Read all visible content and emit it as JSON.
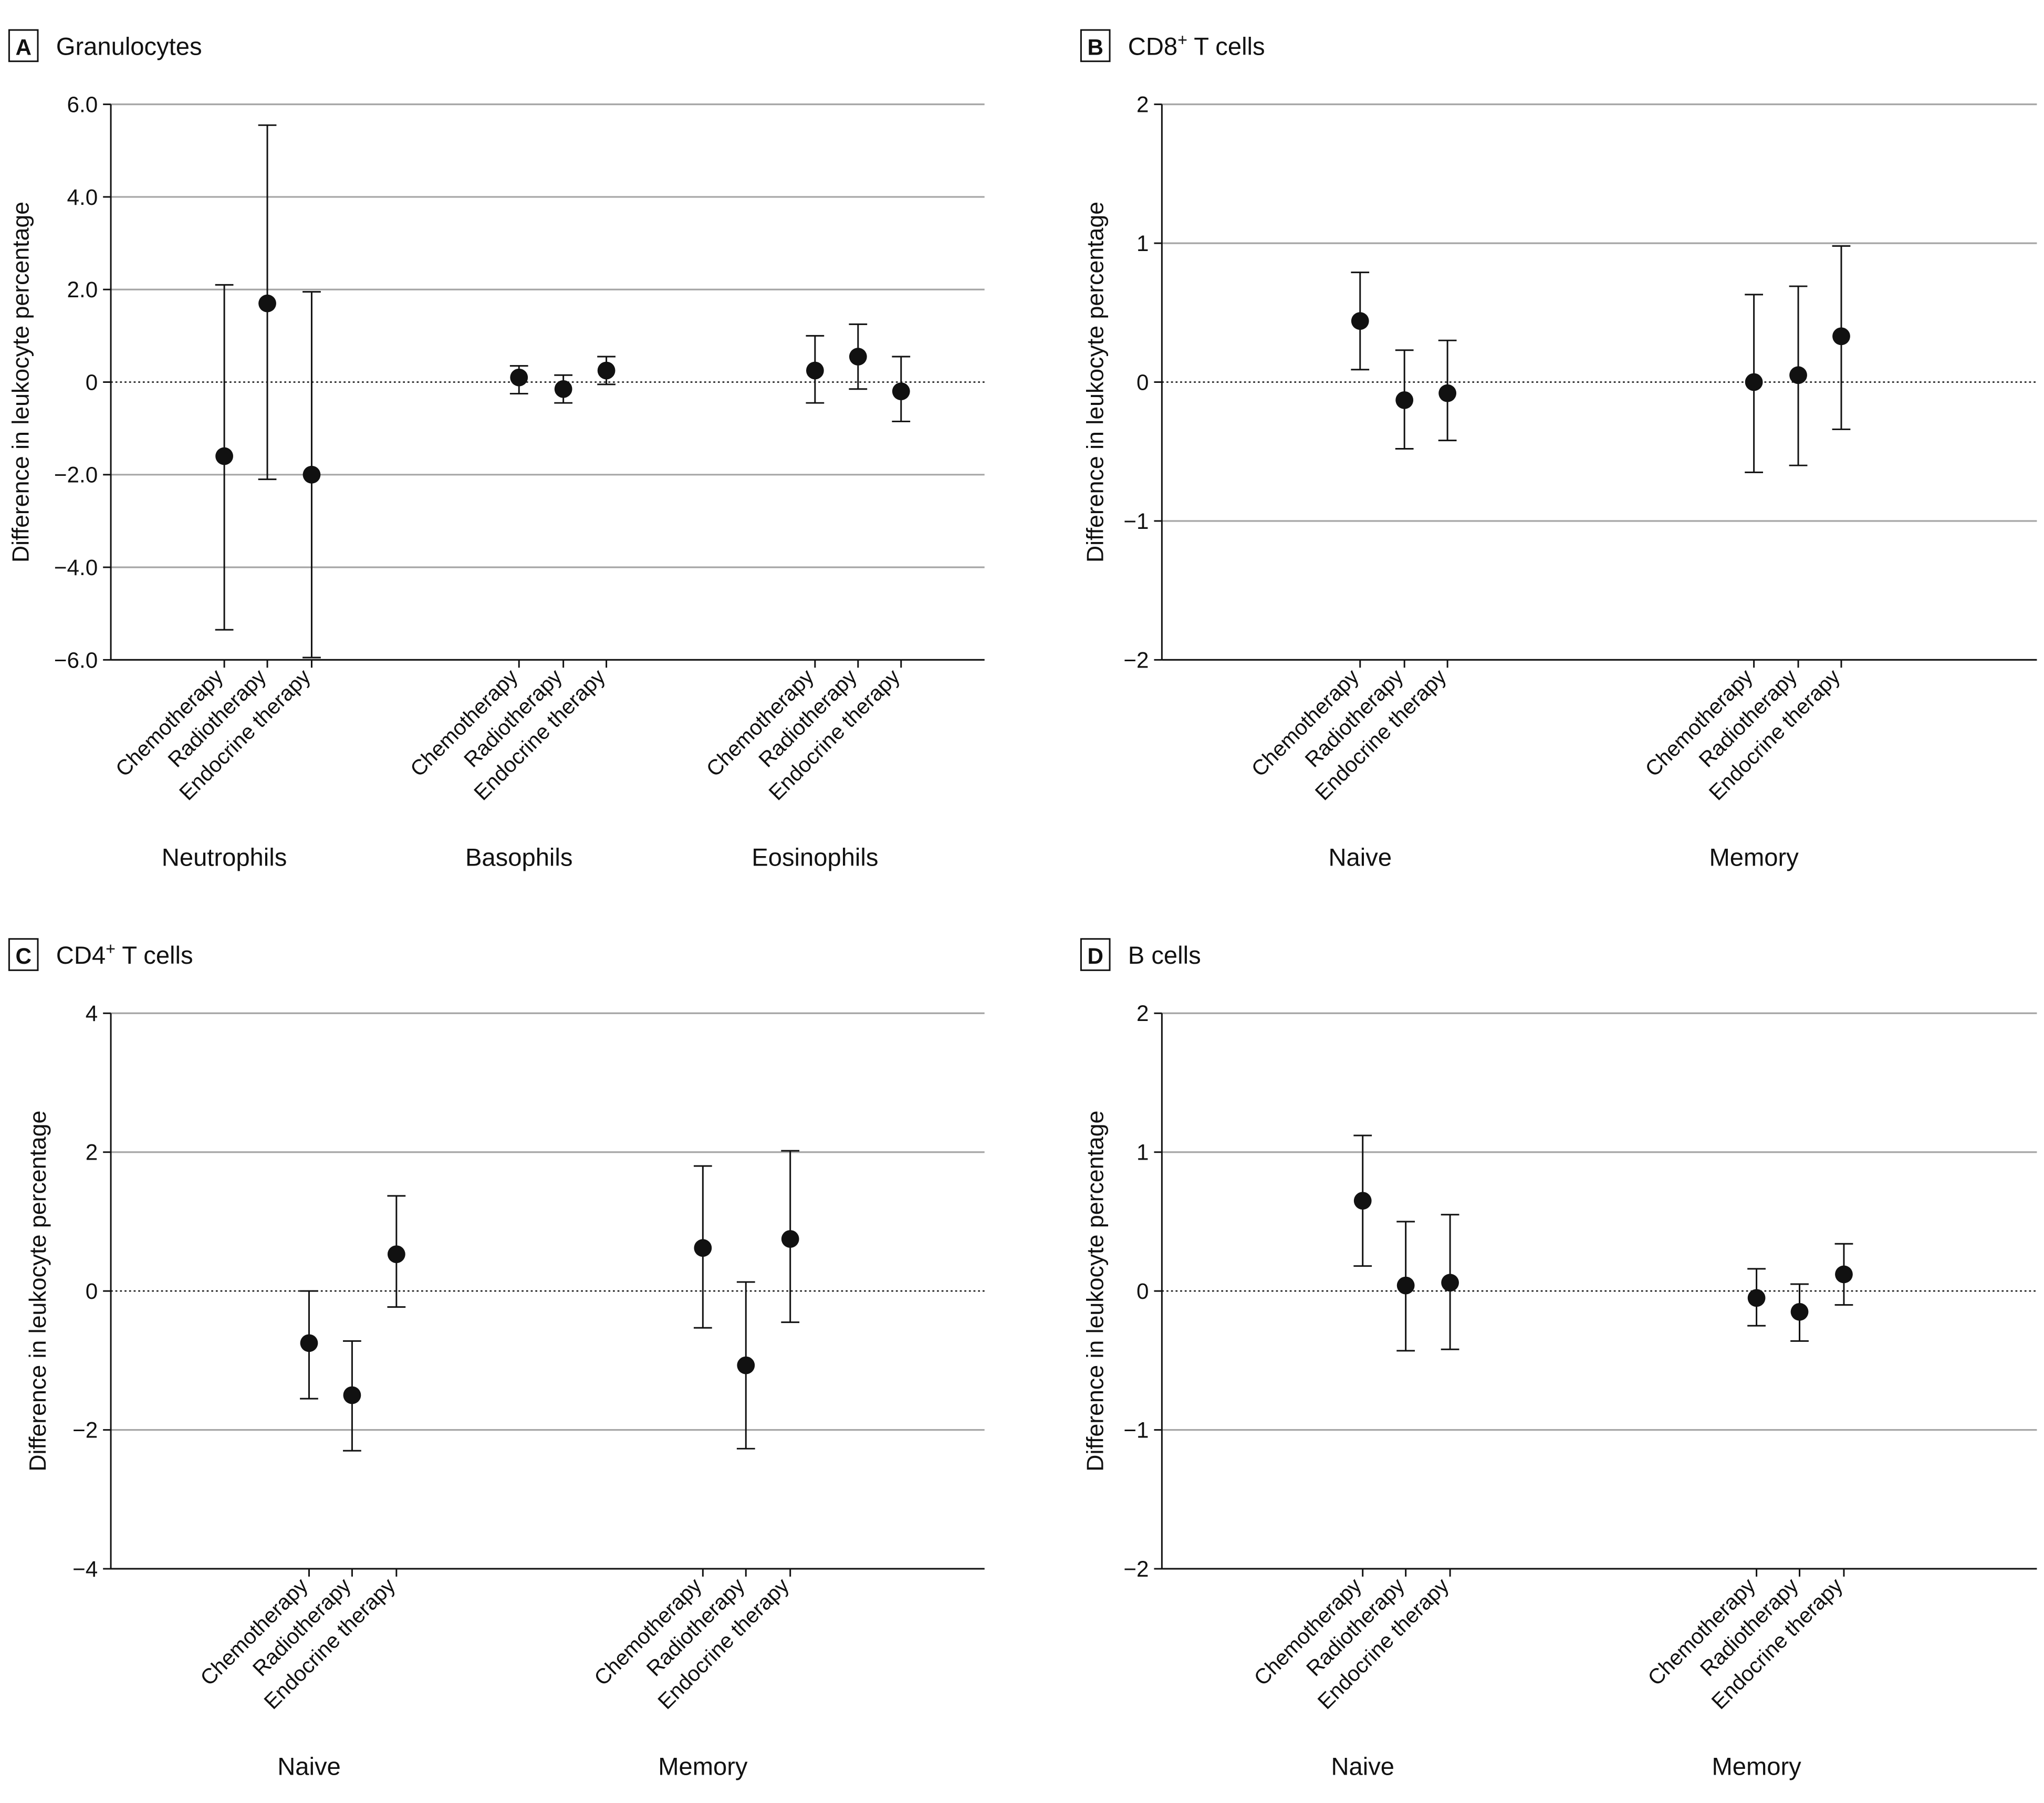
{
  "figure": {
    "colors": {
      "grid": "#a6a6a6",
      "axis": "#111111",
      "marker": "#111111",
      "zero_line": "#111111"
    },
    "treatments": [
      "Chemotherapy",
      "Radiotherapy",
      "Endocrine therapy"
    ]
  },
  "chart_data": [
    {
      "panel_letter": "A",
      "title": "Granulocytes",
      "title_sup": "",
      "type": "scatter",
      "subtype": "point estimate with 95% CI error bars",
      "ylabel": "Difference in leukocyte percentage",
      "ylim": [
        -6,
        6
      ],
      "yticks": [
        -6,
        -4,
        -2,
        0,
        2,
        4,
        6
      ],
      "ytick_labels": [
        "−6.0",
        "−4.0",
        "−2.0",
        "0",
        "2.0",
        "4.0",
        "6.0"
      ],
      "reference_line": 0,
      "groups": [
        {
          "name": "Neutrophils",
          "points": [
            {
              "treatment": "Chemotherapy",
              "estimate": -1.6,
              "lower": -5.35,
              "upper": 2.1
            },
            {
              "treatment": "Radiotherapy",
              "estimate": 1.7,
              "lower": -2.1,
              "upper": 5.55
            },
            {
              "treatment": "Endocrine therapy",
              "estimate": -2.0,
              "lower": -5.95,
              "upper": 1.95
            }
          ]
        },
        {
          "name": "Basophils",
          "points": [
            {
              "treatment": "Chemotherapy",
              "estimate": 0.1,
              "lower": -0.25,
              "upper": 0.35
            },
            {
              "treatment": "Radiotherapy",
              "estimate": -0.15,
              "lower": -0.45,
              "upper": 0.15
            },
            {
              "treatment": "Endocrine therapy",
              "estimate": 0.25,
              "lower": -0.05,
              "upper": 0.55
            }
          ]
        },
        {
          "name": "Eosinophils",
          "points": [
            {
              "treatment": "Chemotherapy",
              "estimate": 0.25,
              "lower": -0.45,
              "upper": 1.0
            },
            {
              "treatment": "Radiotherapy",
              "estimate": 0.55,
              "lower": -0.15,
              "upper": 1.25
            },
            {
              "treatment": "Endocrine therapy",
              "estimate": -0.2,
              "lower": -0.85,
              "upper": 0.55
            }
          ]
        }
      ]
    },
    {
      "panel_letter": "B",
      "title": " T cells",
      "title_prefix": "CD8",
      "title_sup": "+",
      "type": "scatter",
      "subtype": "point estimate with 95% CI error bars",
      "ylabel": "Difference in leukocyte percentage",
      "ylim": [
        -2,
        2
      ],
      "yticks": [
        -2,
        -1,
        0,
        1,
        2
      ],
      "ytick_labels": [
        "−2",
        "−1",
        "0",
        "1",
        "2"
      ],
      "reference_line": 0,
      "groups": [
        {
          "name": "Naive",
          "points": [
            {
              "treatment": "Chemotherapy",
              "estimate": 0.44,
              "lower": 0.09,
              "upper": 0.79
            },
            {
              "treatment": "Radiotherapy",
              "estimate": -0.13,
              "lower": -0.48,
              "upper": 0.23
            },
            {
              "treatment": "Endocrine therapy",
              "estimate": -0.08,
              "lower": -0.42,
              "upper": 0.3
            }
          ]
        },
        {
          "name": "Memory",
          "points": [
            {
              "treatment": "Chemotherapy",
              "estimate": 0.0,
              "lower": -0.65,
              "upper": 0.63
            },
            {
              "treatment": "Radiotherapy",
              "estimate": 0.05,
              "lower": -0.6,
              "upper": 0.69
            },
            {
              "treatment": "Endocrine therapy",
              "estimate": 0.33,
              "lower": -0.34,
              "upper": 0.98
            }
          ]
        }
      ]
    },
    {
      "panel_letter": "C",
      "title": " T cells",
      "title_prefix": "CD4",
      "title_sup": "+",
      "type": "scatter",
      "subtype": "point estimate with 95% CI error bars",
      "ylabel": "Difference in leukocyte percentage",
      "ylim": [
        -4,
        4
      ],
      "yticks": [
        -4,
        -2,
        0,
        2,
        4
      ],
      "ytick_labels": [
        "−4",
        "−2",
        "0",
        "2",
        "4"
      ],
      "reference_line": 0,
      "groups": [
        {
          "name": "Naive",
          "points": [
            {
              "treatment": "Chemotherapy",
              "estimate": -0.75,
              "lower": -1.55,
              "upper": 0.0
            },
            {
              "treatment": "Radiotherapy",
              "estimate": -1.5,
              "lower": -2.3,
              "upper": -0.72
            },
            {
              "treatment": "Endocrine therapy",
              "estimate": 0.53,
              "lower": -0.23,
              "upper": 1.37
            }
          ]
        },
        {
          "name": "Memory",
          "points": [
            {
              "treatment": "Chemotherapy",
              "estimate": 0.62,
              "lower": -0.53,
              "upper": 1.8
            },
            {
              "treatment": "Radiotherapy",
              "estimate": -1.07,
              "lower": -2.27,
              "upper": 0.13
            },
            {
              "treatment": "Endocrine therapy",
              "estimate": 0.75,
              "lower": -0.45,
              "upper": 2.02
            }
          ]
        }
      ]
    },
    {
      "panel_letter": "D",
      "title": "B cells",
      "title_sup": "",
      "type": "scatter",
      "subtype": "point estimate with 95% CI error bars",
      "ylabel": "Difference in leukocyte percentage",
      "ylim": [
        -2,
        2
      ],
      "yticks": [
        -2,
        -1,
        0,
        1,
        2
      ],
      "ytick_labels": [
        "−2",
        "−1",
        "0",
        "1",
        "2"
      ],
      "reference_line": 0,
      "groups": [
        {
          "name": "Naive",
          "points": [
            {
              "treatment": "Chemotherapy",
              "estimate": 0.65,
              "lower": 0.18,
              "upper": 1.12
            },
            {
              "treatment": "Radiotherapy",
              "estimate": 0.04,
              "lower": -0.43,
              "upper": 0.5
            },
            {
              "treatment": "Endocrine therapy",
              "estimate": 0.06,
              "lower": -0.42,
              "upper": 0.55
            }
          ]
        },
        {
          "name": "Memory",
          "points": [
            {
              "treatment": "Chemotherapy",
              "estimate": -0.05,
              "lower": -0.25,
              "upper": 0.16
            },
            {
              "treatment": "Radiotherapy",
              "estimate": -0.15,
              "lower": -0.36,
              "upper": 0.05
            },
            {
              "treatment": "Endocrine therapy",
              "estimate": 0.12,
              "lower": -0.1,
              "upper": 0.34
            }
          ]
        }
      ]
    }
  ]
}
